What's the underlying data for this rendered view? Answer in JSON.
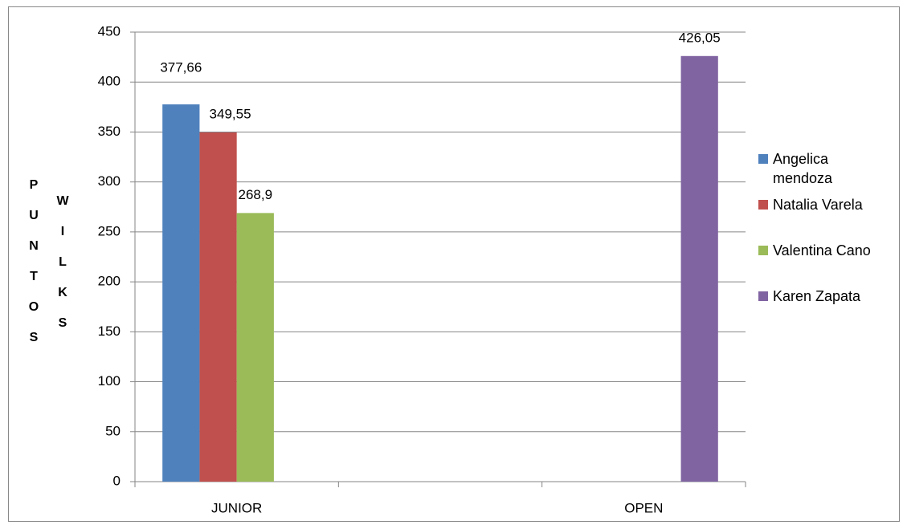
{
  "chart_data": {
    "type": "bar",
    "ylabel": [
      "PUNTOS",
      "WILKS"
    ],
    "categories": [
      "JUNIOR",
      null,
      "OPEN"
    ],
    "series": [
      {
        "name": "Angelica mendoza",
        "color": "#4f81bd",
        "values": [
          377.66,
          null,
          null
        ],
        "value_labels": [
          "377,66",
          null,
          null
        ]
      },
      {
        "name": "Natalia Varela",
        "color": "#c0504d",
        "values": [
          349.55,
          null,
          null
        ],
        "value_labels": [
          "349,55",
          null,
          null
        ]
      },
      {
        "name": "Valentina Cano",
        "color": "#9bbb59",
        "values": [
          268.9,
          null,
          null
        ],
        "value_labels": [
          "268,9",
          null,
          null
        ]
      },
      {
        "name": "Karen Zapata",
        "color": "#8064a2",
        "values": [
          null,
          null,
          426.05
        ],
        "value_labels": [
          null,
          null,
          "426,05"
        ]
      }
    ],
    "ylim": [
      0,
      450
    ],
    "yticks": [
      0,
      50,
      100,
      150,
      200,
      250,
      300,
      350,
      400,
      450
    ],
    "grid": true,
    "legend": "right"
  }
}
